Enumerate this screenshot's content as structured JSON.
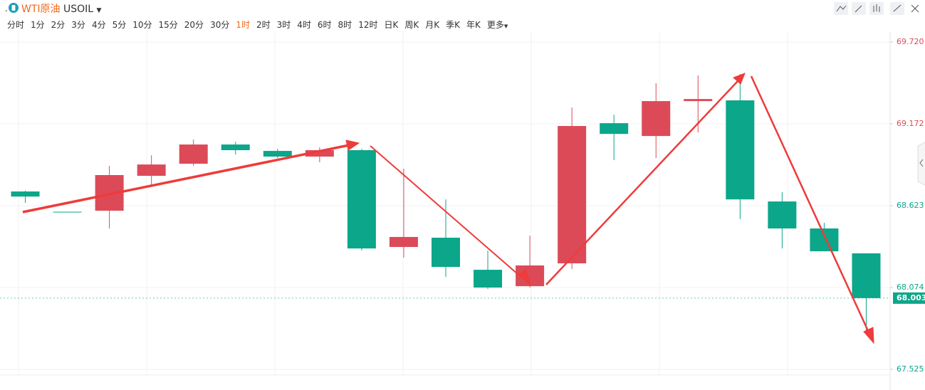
{
  "toolbar": {
    "symbol_name": "WTI原油",
    "symbol": "USOIL",
    "intervals": [
      "分时",
      "1分",
      "2分",
      "3分",
      "4分",
      "5分",
      "10分",
      "15分",
      "20分",
      "30分",
      "1时",
      "2时",
      "3时",
      "4时",
      "6时",
      "8时",
      "12时",
      "日K",
      "周K",
      "月K",
      "季K",
      "年K",
      "更多"
    ],
    "active_interval": 10
  },
  "chart_data": {
    "type": "candlestick",
    "categories": [
      null,
      null,
      null,
      null,
      null,
      null,
      null,
      null,
      null,
      null,
      null,
      null,
      null,
      null,
      null,
      null,
      null,
      null,
      null,
      null,
      null
    ],
    "open": [
      68.718,
      68.582,
      68.589,
      68.823,
      68.904,
      69.033,
      68.99,
      68.952,
      68.995,
      68.346,
      68.408,
      68.193,
      68.083,
      68.236,
      69.176,
      69.09,
      69.324,
      69.329,
      68.651,
      68.47,
      68.303
    ],
    "high": [
      68.723,
      68.582,
      68.89,
      68.961,
      69.066,
      69.052,
      69.004,
      69.014,
      69.004,
      68.871,
      68.665,
      68.322,
      68.422,
      69.281,
      69.233,
      69.443,
      69.496,
      69.505,
      68.713,
      68.508,
      68.303
    ],
    "low": [
      68.642,
      68.578,
      68.47,
      68.751,
      68.89,
      68.966,
      68.942,
      68.914,
      68.322,
      68.274,
      68.145,
      68.064,
      68.074,
      68.198,
      68.928,
      68.942,
      69.114,
      68.532,
      68.336,
      68.317,
      67.764
    ],
    "close": [
      68.684,
      68.578,
      68.828,
      68.899,
      69.033,
      68.995,
      68.952,
      68.995,
      68.336,
      68.413,
      68.212,
      68.074,
      68.222,
      69.157,
      69.104,
      69.324,
      69.338,
      68.665,
      68.47,
      68.317,
      68.003
    ],
    "up_color": "#dc4a58",
    "down_color": "#0ca68a",
    "ylim": [
      67.487,
      69.792
    ],
    "yticks": [
      {
        "value": 69.72,
        "label": "69.720"
      },
      69.172,
      68.623,
      68.074,
      67.525
    ],
    "ytick_colors": [
      "#dc4a58",
      "#dc4a58",
      "#0ca68a",
      "#0ca68a",
      "#0ca68a"
    ],
    "current_price": 68.003,
    "current_color": "#0ca68a",
    "grid": true
  }
}
